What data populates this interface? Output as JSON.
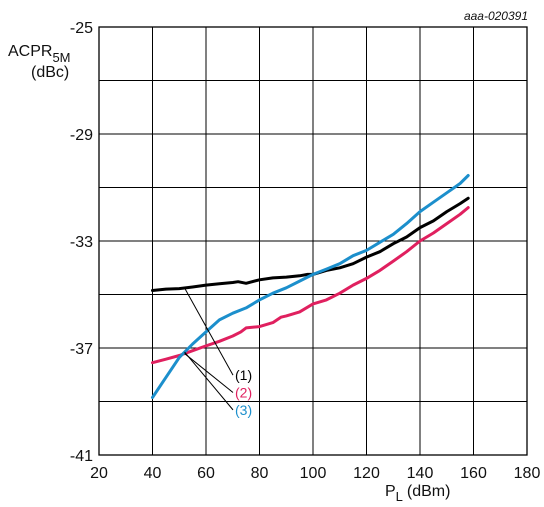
{
  "chart_data": {
    "type": "line",
    "note": "aaa-020391",
    "ylabel_main": "ACPR",
    "ylabel_sub": "5M",
    "ylabel_unit": "(dBc)",
    "xlabel_main": "P",
    "xlabel_sub": "L",
    "xlabel_unit": "(dBm)",
    "xlim": [
      20,
      180
    ],
    "ylim": [
      -41,
      -25
    ],
    "xticks": [
      20,
      40,
      60,
      80,
      100,
      120,
      140,
      160,
      180
    ],
    "yticks": [
      -25,
      -29,
      -33,
      -37,
      -41
    ],
    "grid": true,
    "series": [
      {
        "name": "(1)",
        "color": "#000000",
        "label_y": -38.2,
        "x": [
          40,
          45,
          50,
          55,
          60,
          65,
          70,
          72,
          75,
          80,
          85,
          90,
          95,
          98,
          100,
          105,
          110,
          115,
          120,
          125,
          130,
          135,
          140,
          145,
          150,
          155,
          158
        ],
        "y": [
          -34.85,
          -34.8,
          -34.78,
          -34.72,
          -34.65,
          -34.6,
          -34.55,
          -34.52,
          -34.58,
          -34.45,
          -34.38,
          -34.35,
          -34.3,
          -34.25,
          -34.25,
          -34.1,
          -34.0,
          -33.85,
          -33.6,
          -33.4,
          -33.1,
          -32.85,
          -32.5,
          -32.25,
          -31.9,
          -31.6,
          -31.4
        ]
      },
      {
        "name": "(2)",
        "color": "#e0205f",
        "label_y": -38.85,
        "x": [
          40,
          45,
          50,
          55,
          60,
          65,
          70,
          73,
          75,
          80,
          85,
          88,
          90,
          95,
          100,
          105,
          110,
          115,
          120,
          125,
          130,
          135,
          140,
          145,
          150,
          155,
          158
        ],
        "y": [
          -37.55,
          -37.42,
          -37.28,
          -37.1,
          -36.92,
          -36.75,
          -36.55,
          -36.4,
          -36.25,
          -36.2,
          -36.05,
          -35.85,
          -35.8,
          -35.65,
          -35.35,
          -35.2,
          -34.95,
          -34.65,
          -34.4,
          -34.1,
          -33.75,
          -33.4,
          -33.0,
          -32.7,
          -32.35,
          -32.0,
          -31.75
        ]
      },
      {
        "name": "(3)",
        "color": "#1c8fcc",
        "label_y": -39.5,
        "x": [
          40,
          45,
          50,
          55,
          60,
          65,
          70,
          75,
          80,
          85,
          90,
          95,
          100,
          105,
          110,
          115,
          120,
          125,
          130,
          135,
          140,
          145,
          150,
          155,
          158
        ],
        "y": [
          -38.85,
          -38.1,
          -37.35,
          -36.85,
          -36.4,
          -35.95,
          -35.7,
          -35.5,
          -35.2,
          -34.95,
          -34.75,
          -34.5,
          -34.25,
          -34.05,
          -33.85,
          -33.55,
          -33.35,
          -33.05,
          -32.75,
          -32.35,
          -31.9,
          -31.55,
          -31.2,
          -30.85,
          -30.55
        ]
      }
    ]
  }
}
